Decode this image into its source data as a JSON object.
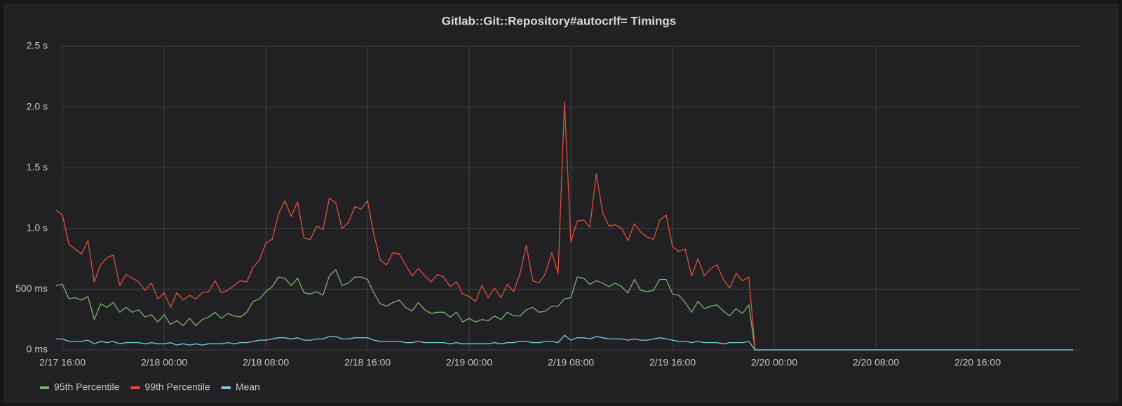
{
  "chart_data": {
    "type": "line",
    "title": "Gitlab::Git::Repository#autocrlf= Timings",
    "x": [
      "2/17 15:30",
      "2/17 16:00",
      "2/17 16:30",
      "2/17 17:00",
      "2/17 17:30",
      "2/17 18:00",
      "2/17 18:30",
      "2/17 19:00",
      "2/17 19:30",
      "2/17 20:00",
      "2/17 20:30",
      "2/17 21:00",
      "2/17 21:30",
      "2/17 22:00",
      "2/17 22:30",
      "2/17 23:00",
      "2/17 23:30",
      "2/18 00:00",
      "2/18 00:30",
      "2/18 01:00",
      "2/18 01:30",
      "2/18 02:00",
      "2/18 02:30",
      "2/18 03:00",
      "2/18 03:30",
      "2/18 04:00",
      "2/18 04:30",
      "2/18 05:00",
      "2/18 05:30",
      "2/18 06:00",
      "2/18 06:30",
      "2/18 07:00",
      "2/18 07:30",
      "2/18 08:00",
      "2/18 08:30",
      "2/18 09:00",
      "2/18 09:30",
      "2/18 10:00",
      "2/18 10:30",
      "2/18 11:00",
      "2/18 11:30",
      "2/18 12:00",
      "2/18 12:30",
      "2/18 13:00",
      "2/18 13:30",
      "2/18 14:00",
      "2/18 14:30",
      "2/18 15:00",
      "2/18 15:30",
      "2/18 16:00",
      "2/18 16:30",
      "2/18 17:00",
      "2/18 17:30",
      "2/18 18:00",
      "2/18 18:30",
      "2/18 19:00",
      "2/18 19:30",
      "2/18 20:00",
      "2/18 20:30",
      "2/18 21:00",
      "2/18 21:30",
      "2/18 22:00",
      "2/18 22:30",
      "2/18 23:00",
      "2/18 23:30",
      "2/19 00:00",
      "2/19 00:30",
      "2/19 01:00",
      "2/19 01:30",
      "2/19 02:00",
      "2/19 02:30",
      "2/19 03:00",
      "2/19 03:30",
      "2/19 04:00",
      "2/19 04:30",
      "2/19 05:00",
      "2/19 05:30",
      "2/19 06:00",
      "2/19 06:30",
      "2/19 07:00",
      "2/19 07:30",
      "2/19 08:00",
      "2/19 08:30",
      "2/19 09:00",
      "2/19 09:30",
      "2/19 10:00",
      "2/19 10:30",
      "2/19 11:00",
      "2/19 11:30",
      "2/19 12:00",
      "2/19 12:30",
      "2/19 13:00",
      "2/19 13:30",
      "2/19 14:00",
      "2/19 14:30",
      "2/19 15:00",
      "2/19 15:30",
      "2/19 16:00",
      "2/19 16:30",
      "2/19 17:00",
      "2/19 17:30",
      "2/19 18:00",
      "2/19 18:30",
      "2/19 19:00",
      "2/19 19:30",
      "2/19 20:00",
      "2/19 20:30",
      "2/19 21:00",
      "2/19 21:30",
      "2/19 22:00",
      "2/19 22:30",
      "2/20 23:30"
    ],
    "series": [
      {
        "name": "95th Percentile",
        "color": "#7eb26d",
        "values": [
          0.53,
          0.54,
          0.42,
          0.43,
          0.41,
          0.44,
          0.25,
          0.38,
          0.35,
          0.39,
          0.31,
          0.35,
          0.31,
          0.33,
          0.27,
          0.29,
          0.23,
          0.29,
          0.21,
          0.24,
          0.2,
          0.26,
          0.2,
          0.25,
          0.27,
          0.31,
          0.26,
          0.3,
          0.28,
          0.27,
          0.31,
          0.4,
          0.42,
          0.48,
          0.52,
          0.6,
          0.59,
          0.53,
          0.59,
          0.47,
          0.46,
          0.48,
          0.45,
          0.61,
          0.66,
          0.53,
          0.55,
          0.6,
          0.6,
          0.58,
          0.47,
          0.38,
          0.36,
          0.39,
          0.41,
          0.35,
          0.32,
          0.39,
          0.33,
          0.3,
          0.31,
          0.31,
          0.27,
          0.31,
          0.23,
          0.26,
          0.23,
          0.25,
          0.24,
          0.28,
          0.25,
          0.31,
          0.28,
          0.28,
          0.33,
          0.35,
          0.31,
          0.32,
          0.36,
          0.36,
          0.42,
          0.43,
          0.6,
          0.59,
          0.54,
          0.57,
          0.55,
          0.52,
          0.55,
          0.52,
          0.47,
          0.58,
          0.49,
          0.48,
          0.49,
          0.58,
          0.58,
          0.46,
          0.45,
          0.39,
          0.31,
          0.4,
          0.34,
          0.36,
          0.37,
          0.32,
          0.28,
          0.34,
          0.3,
          0.37,
          0,
          0
        ]
      },
      {
        "name": "99th Percentile",
        "color": "#e24d42",
        "values": [
          1.15,
          1.11,
          0.87,
          0.83,
          0.79,
          0.9,
          0.56,
          0.7,
          0.76,
          0.78,
          0.53,
          0.62,
          0.59,
          0.56,
          0.49,
          0.55,
          0.42,
          0.47,
          0.35,
          0.47,
          0.41,
          0.45,
          0.42,
          0.47,
          0.48,
          0.57,
          0.47,
          0.49,
          0.53,
          0.57,
          0.56,
          0.68,
          0.74,
          0.88,
          0.91,
          1.12,
          1.23,
          1.1,
          1.22,
          0.92,
          0.91,
          1.02,
          0.99,
          1.25,
          1.21,
          1.0,
          1.05,
          1.18,
          1.16,
          1.23,
          0.95,
          0.74,
          0.7,
          0.8,
          0.79,
          0.7,
          0.61,
          0.67,
          0.61,
          0.56,
          0.62,
          0.6,
          0.52,
          0.56,
          0.46,
          0.44,
          0.4,
          0.53,
          0.43,
          0.51,
          0.43,
          0.54,
          0.48,
          0.63,
          0.86,
          0.57,
          0.55,
          0.63,
          0.8,
          0.63,
          2.04,
          0.89,
          1.06,
          1.07,
          1.01,
          1.45,
          1.13,
          1.02,
          1.03,
          1.0,
          0.9,
          1.04,
          0.97,
          0.93,
          0.91,
          1.07,
          1.11,
          0.85,
          0.81,
          0.83,
          0.61,
          0.75,
          0.61,
          0.67,
          0.7,
          0.58,
          0.51,
          0.63,
          0.57,
          0.6,
          0,
          0
        ]
      },
      {
        "name": "Mean",
        "color": "#6ed0e0",
        "values": [
          0.09,
          0.09,
          0.07,
          0.07,
          0.07,
          0.08,
          0.05,
          0.07,
          0.06,
          0.07,
          0.05,
          0.06,
          0.06,
          0.06,
          0.05,
          0.06,
          0.05,
          0.05,
          0.06,
          0.04,
          0.05,
          0.04,
          0.05,
          0.04,
          0.05,
          0.05,
          0.05,
          0.06,
          0.05,
          0.06,
          0.06,
          0.07,
          0.08,
          0.08,
          0.09,
          0.1,
          0.1,
          0.09,
          0.1,
          0.08,
          0.08,
          0.09,
          0.09,
          0.11,
          0.11,
          0.09,
          0.09,
          0.1,
          0.1,
          0.1,
          0.08,
          0.07,
          0.07,
          0.07,
          0.07,
          0.06,
          0.06,
          0.07,
          0.06,
          0.06,
          0.06,
          0.06,
          0.05,
          0.06,
          0.05,
          0.05,
          0.05,
          0.05,
          0.05,
          0.06,
          0.05,
          0.06,
          0.06,
          0.07,
          0.07,
          0.06,
          0.06,
          0.07,
          0.07,
          0.06,
          0.12,
          0.08,
          0.1,
          0.1,
          0.09,
          0.11,
          0.1,
          0.09,
          0.09,
          0.09,
          0.08,
          0.09,
          0.08,
          0.08,
          0.09,
          0.1,
          0.09,
          0.08,
          0.07,
          0.07,
          0.06,
          0.07,
          0.06,
          0.06,
          0.06,
          0.05,
          0.06,
          0.06,
          0.06,
          0.07,
          0,
          0
        ]
      }
    ],
    "xlim": [
      "2/17 15:10",
      "2/20 23:50"
    ],
    "xticks": [
      "2/17 16:00",
      "2/18 00:00",
      "2/18 08:00",
      "2/18 16:00",
      "2/19 00:00",
      "2/19 08:00",
      "2/19 16:00",
      "2/20 00:00",
      "2/20 08:00",
      "2/20 16:00"
    ],
    "ylim": [
      0,
      2.5
    ],
    "yticks": [
      {
        "value": 0,
        "label": "0 ms"
      },
      {
        "value": 0.5,
        "label": "500 ms"
      },
      {
        "value": 1,
        "label": "1.0 s"
      },
      {
        "value": 1.5,
        "label": "1.5 s"
      },
      {
        "value": 2,
        "label": "2.0 s"
      },
      {
        "value": 2.5,
        "label": "2.5 s"
      }
    ],
    "grid": true
  }
}
